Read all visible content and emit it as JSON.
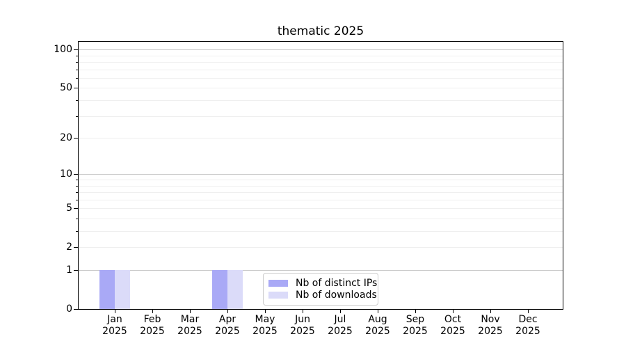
{
  "figure": {
    "background": "#ffffff",
    "axis_color": "#000000",
    "gridline_major_color": "#c9c9c9",
    "gridline_minor_color": "#efefef",
    "legend_border_color": "#cccccc"
  },
  "chart_data": {
    "type": "bar",
    "title": "thematic 2025",
    "xlabel": "",
    "ylabel": "",
    "categories": [
      "Jan",
      "Feb",
      "Mar",
      "Apr",
      "May",
      "Jun",
      "Jul",
      "Aug",
      "Sep",
      "Oct",
      "Nov",
      "Dec"
    ],
    "category_year": "2025",
    "series": [
      {
        "name": "Nb of distinct IPs",
        "color": "#a9a9f6",
        "values": [
          1,
          0,
          0,
          1,
          0,
          0,
          0,
          0,
          0,
          0,
          0,
          0
        ]
      },
      {
        "name": "Nb of downloads",
        "color": "#dbdbf9",
        "values": [
          1,
          0,
          0,
          1,
          0,
          0,
          0,
          0,
          0,
          0,
          0,
          0
        ]
      }
    ],
    "yscale": "log1p",
    "ylim": [
      0,
      115
    ],
    "ytick_values": [
      0,
      1,
      2,
      5,
      10,
      20,
      50,
      100
    ],
    "ytick_labels": [
      "0",
      "1",
      "2",
      "5",
      "10",
      "20",
      "50",
      "100"
    ],
    "major_gridlines": [
      1,
      10,
      100
    ],
    "minor_gridlines": [
      2,
      3,
      4,
      5,
      6,
      7,
      8,
      9,
      20,
      30,
      40,
      50,
      60,
      70,
      80,
      90
    ],
    "grid": "on",
    "legend": {
      "position": "lower center",
      "entries": [
        "Nb of distinct IPs",
        "Nb of downloads"
      ]
    }
  }
}
